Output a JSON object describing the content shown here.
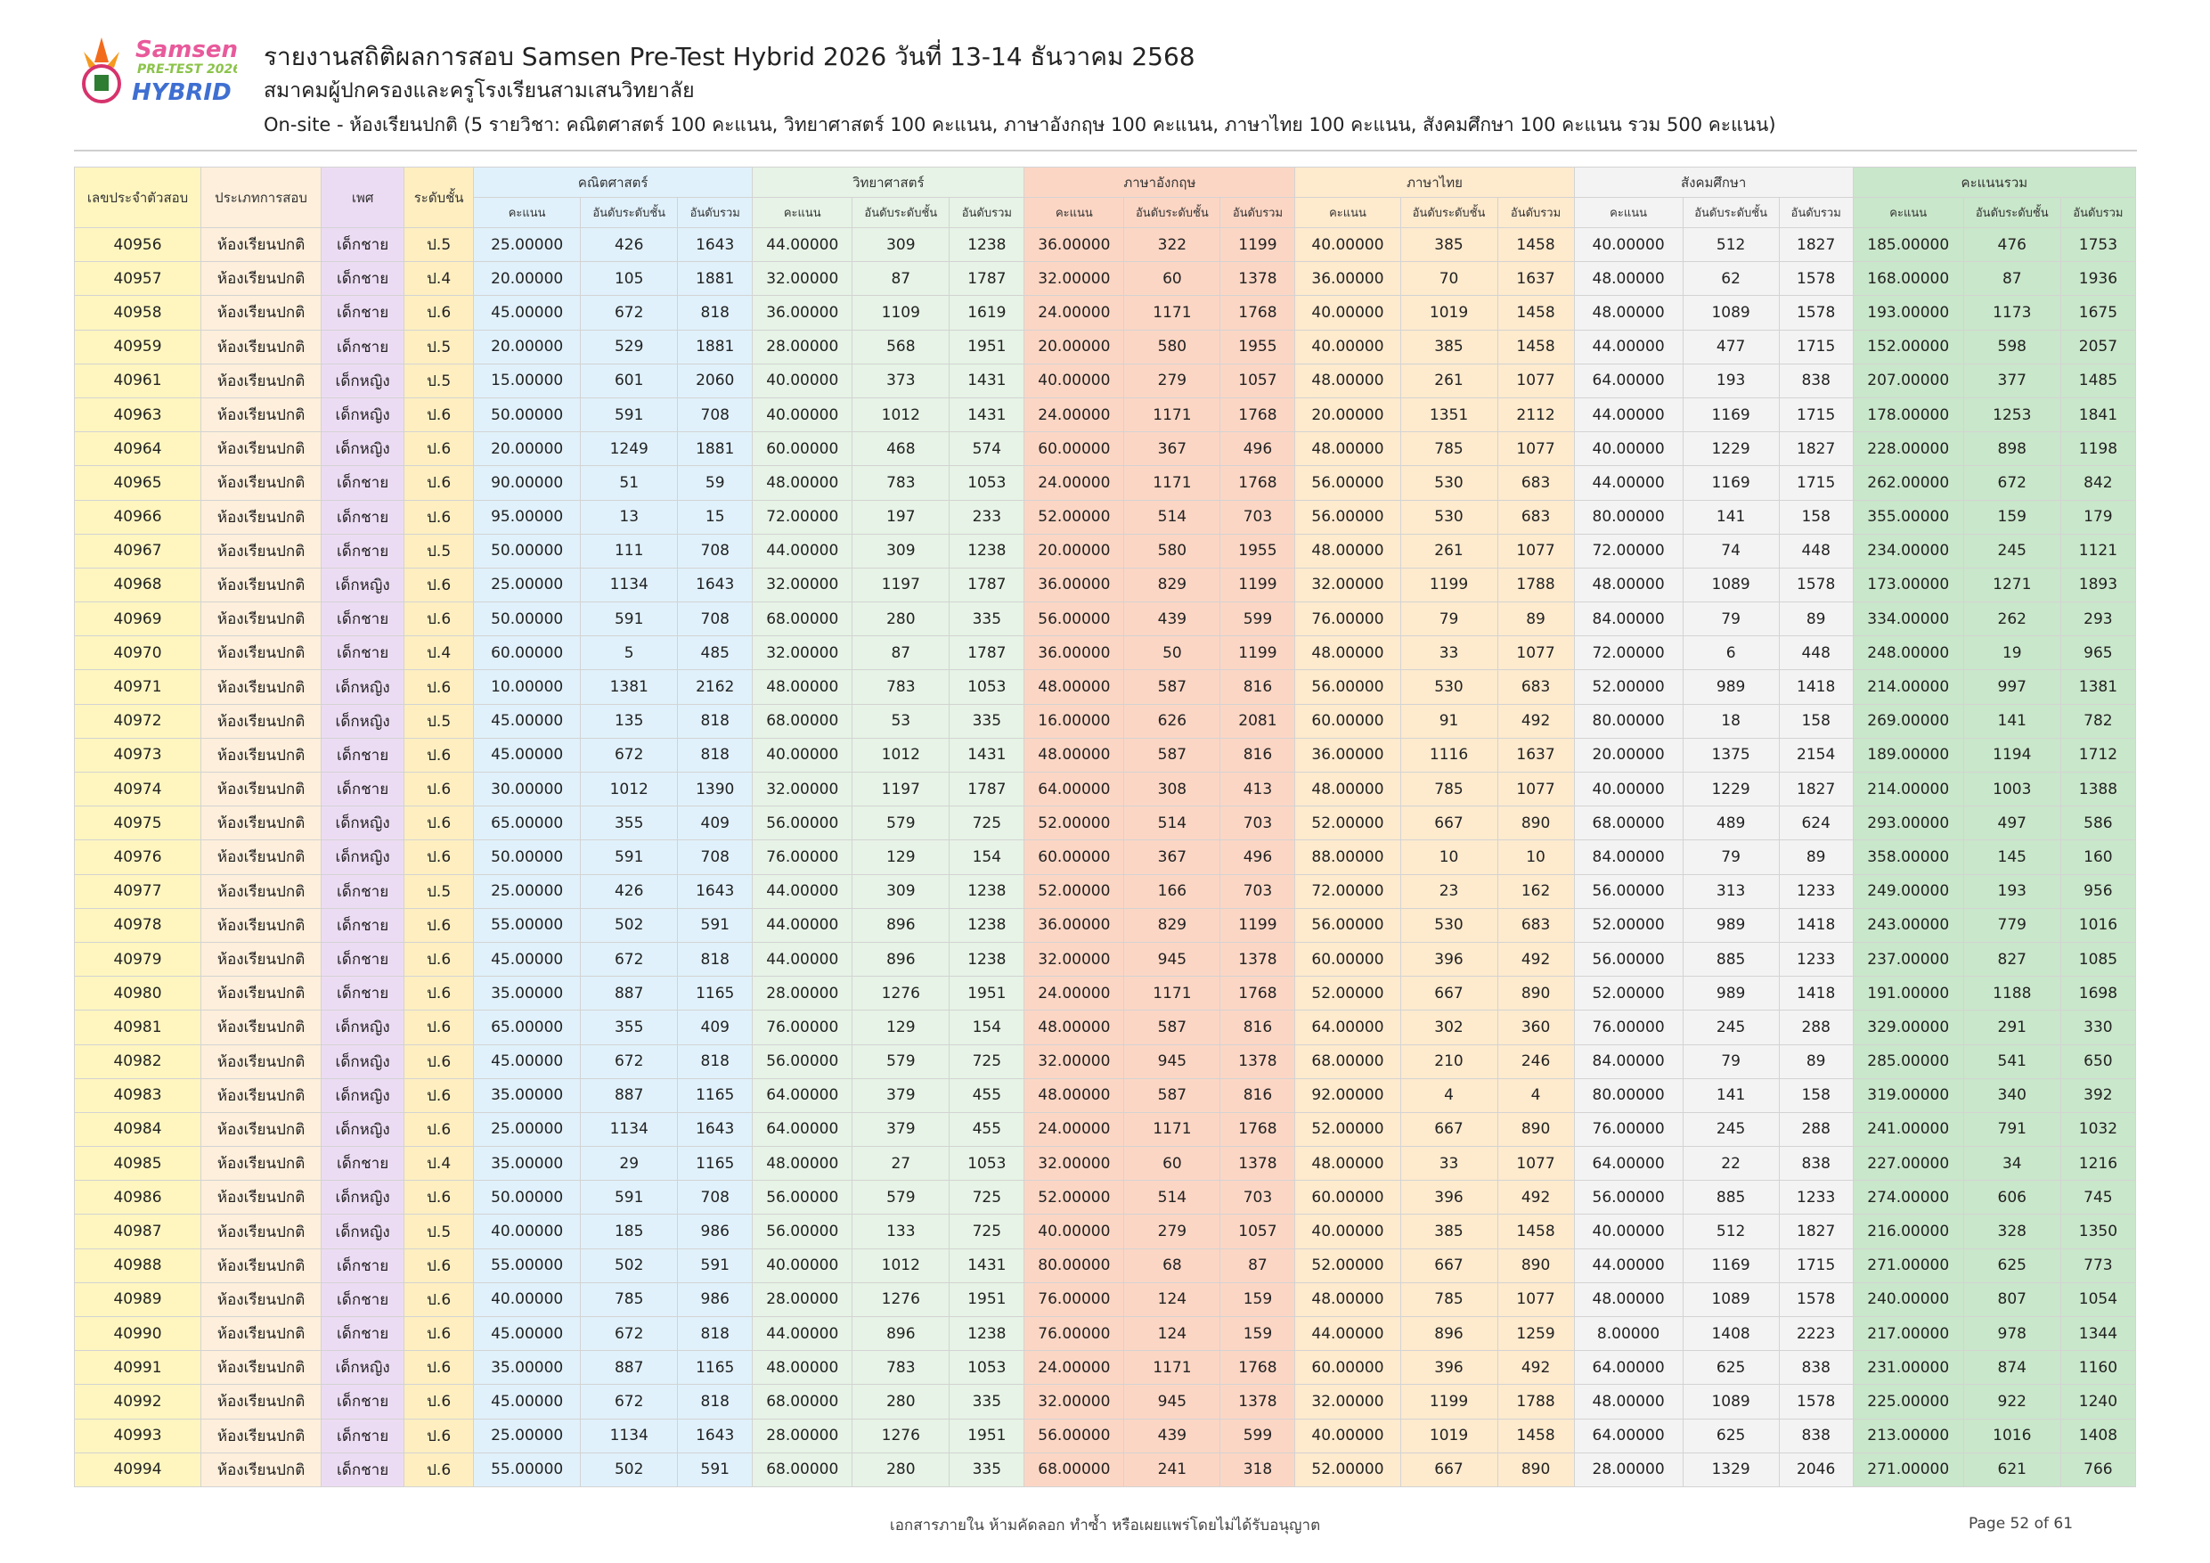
{
  "header": {
    "logo_text": "Samsen PRE-TEST 2026 HYBRID",
    "title": "รายงานสถิติผลการสอบ Samsen Pre-Test Hybrid 2026 วันที่ 13-14 ธันวาคม 2568",
    "subtitle": "สมาคมผู้ปกครองและครูโรงเรียนสามเสนวิทยาลัย",
    "description": "On-site - ห้องเรียนปกติ (5 รายวิชา: คณิตศาสตร์ 100 คะแนน, วิทยาศาสตร์ 100 คะแนน, ภาษาอังกฤษ 100 คะแนน, ภาษาไทย 100 คะแนน, สังคมศึกษา 100 คะแนน รวม 500 คะแนน)"
  },
  "table": {
    "fixed_headers": [
      "เลขประจำตัวสอบ",
      "ประเภทการสอบ",
      "เพศ",
      "ระดับชั้น"
    ],
    "groups": [
      "คณิตศาสตร์",
      "วิทยาศาสตร์",
      "ภาษาอังกฤษ",
      "ภาษาไทย",
      "สังคมศึกษา",
      "คะแนนรวม"
    ],
    "sub_headers": [
      "คะแนน",
      "อันดับระดับชั้น",
      "อันดับรวม"
    ],
    "group_colors": [
      "#e0f1fb",
      "#e6f3e6",
      "#fcd6c4",
      "#feeacd",
      "#f3f3f3",
      "#c9e7ca"
    ],
    "rows": [
      [
        "40956",
        "ห้องเรียนปกติ",
        "เด็กชาย",
        "ป.5",
        "25.00000",
        "426",
        "1643",
        "44.00000",
        "309",
        "1238",
        "36.00000",
        "322",
        "1199",
        "40.00000",
        "385",
        "1458",
        "40.00000",
        "512",
        "1827",
        "185.00000",
        "476",
        "1753"
      ],
      [
        "40957",
        "ห้องเรียนปกติ",
        "เด็กชาย",
        "ป.4",
        "20.00000",
        "105",
        "1881",
        "32.00000",
        "87",
        "1787",
        "32.00000",
        "60",
        "1378",
        "36.00000",
        "70",
        "1637",
        "48.00000",
        "62",
        "1578",
        "168.00000",
        "87",
        "1936"
      ],
      [
        "40958",
        "ห้องเรียนปกติ",
        "เด็กชาย",
        "ป.6",
        "45.00000",
        "672",
        "818",
        "36.00000",
        "1109",
        "1619",
        "24.00000",
        "1171",
        "1768",
        "40.00000",
        "1019",
        "1458",
        "48.00000",
        "1089",
        "1578",
        "193.00000",
        "1173",
        "1675"
      ],
      [
        "40959",
        "ห้องเรียนปกติ",
        "เด็กชาย",
        "ป.5",
        "20.00000",
        "529",
        "1881",
        "28.00000",
        "568",
        "1951",
        "20.00000",
        "580",
        "1955",
        "40.00000",
        "385",
        "1458",
        "44.00000",
        "477",
        "1715",
        "152.00000",
        "598",
        "2057"
      ],
      [
        "40961",
        "ห้องเรียนปกติ",
        "เด็กหญิง",
        "ป.5",
        "15.00000",
        "601",
        "2060",
        "40.00000",
        "373",
        "1431",
        "40.00000",
        "279",
        "1057",
        "48.00000",
        "261",
        "1077",
        "64.00000",
        "193",
        "838",
        "207.00000",
        "377",
        "1485"
      ],
      [
        "40963",
        "ห้องเรียนปกติ",
        "เด็กหญิง",
        "ป.6",
        "50.00000",
        "591",
        "708",
        "40.00000",
        "1012",
        "1431",
        "24.00000",
        "1171",
        "1768",
        "20.00000",
        "1351",
        "2112",
        "44.00000",
        "1169",
        "1715",
        "178.00000",
        "1253",
        "1841"
      ],
      [
        "40964",
        "ห้องเรียนปกติ",
        "เด็กหญิง",
        "ป.6",
        "20.00000",
        "1249",
        "1881",
        "60.00000",
        "468",
        "574",
        "60.00000",
        "367",
        "496",
        "48.00000",
        "785",
        "1077",
        "40.00000",
        "1229",
        "1827",
        "228.00000",
        "898",
        "1198"
      ],
      [
        "40965",
        "ห้องเรียนปกติ",
        "เด็กชาย",
        "ป.6",
        "90.00000",
        "51",
        "59",
        "48.00000",
        "783",
        "1053",
        "24.00000",
        "1171",
        "1768",
        "56.00000",
        "530",
        "683",
        "44.00000",
        "1169",
        "1715",
        "262.00000",
        "672",
        "842"
      ],
      [
        "40966",
        "ห้องเรียนปกติ",
        "เด็กชาย",
        "ป.6",
        "95.00000",
        "13",
        "15",
        "72.00000",
        "197",
        "233",
        "52.00000",
        "514",
        "703",
        "56.00000",
        "530",
        "683",
        "80.00000",
        "141",
        "158",
        "355.00000",
        "159",
        "179"
      ],
      [
        "40967",
        "ห้องเรียนปกติ",
        "เด็กชาย",
        "ป.5",
        "50.00000",
        "111",
        "708",
        "44.00000",
        "309",
        "1238",
        "20.00000",
        "580",
        "1955",
        "48.00000",
        "261",
        "1077",
        "72.00000",
        "74",
        "448",
        "234.00000",
        "245",
        "1121"
      ],
      [
        "40968",
        "ห้องเรียนปกติ",
        "เด็กหญิง",
        "ป.6",
        "25.00000",
        "1134",
        "1643",
        "32.00000",
        "1197",
        "1787",
        "36.00000",
        "829",
        "1199",
        "32.00000",
        "1199",
        "1788",
        "48.00000",
        "1089",
        "1578",
        "173.00000",
        "1271",
        "1893"
      ],
      [
        "40969",
        "ห้องเรียนปกติ",
        "เด็กชาย",
        "ป.6",
        "50.00000",
        "591",
        "708",
        "68.00000",
        "280",
        "335",
        "56.00000",
        "439",
        "599",
        "76.00000",
        "79",
        "89",
        "84.00000",
        "79",
        "89",
        "334.00000",
        "262",
        "293"
      ],
      [
        "40970",
        "ห้องเรียนปกติ",
        "เด็กชาย",
        "ป.4",
        "60.00000",
        "5",
        "485",
        "32.00000",
        "87",
        "1787",
        "36.00000",
        "50",
        "1199",
        "48.00000",
        "33",
        "1077",
        "72.00000",
        "6",
        "448",
        "248.00000",
        "19",
        "965"
      ],
      [
        "40971",
        "ห้องเรียนปกติ",
        "เด็กหญิง",
        "ป.6",
        "10.00000",
        "1381",
        "2162",
        "48.00000",
        "783",
        "1053",
        "48.00000",
        "587",
        "816",
        "56.00000",
        "530",
        "683",
        "52.00000",
        "989",
        "1418",
        "214.00000",
        "997",
        "1381"
      ],
      [
        "40972",
        "ห้องเรียนปกติ",
        "เด็กหญิง",
        "ป.5",
        "45.00000",
        "135",
        "818",
        "68.00000",
        "53",
        "335",
        "16.00000",
        "626",
        "2081",
        "60.00000",
        "91",
        "492",
        "80.00000",
        "18",
        "158",
        "269.00000",
        "141",
        "782"
      ],
      [
        "40973",
        "ห้องเรียนปกติ",
        "เด็กชาย",
        "ป.6",
        "45.00000",
        "672",
        "818",
        "40.00000",
        "1012",
        "1431",
        "48.00000",
        "587",
        "816",
        "36.00000",
        "1116",
        "1637",
        "20.00000",
        "1375",
        "2154",
        "189.00000",
        "1194",
        "1712"
      ],
      [
        "40974",
        "ห้องเรียนปกติ",
        "เด็กชาย",
        "ป.6",
        "30.00000",
        "1012",
        "1390",
        "32.00000",
        "1197",
        "1787",
        "64.00000",
        "308",
        "413",
        "48.00000",
        "785",
        "1077",
        "40.00000",
        "1229",
        "1827",
        "214.00000",
        "1003",
        "1388"
      ],
      [
        "40975",
        "ห้องเรียนปกติ",
        "เด็กหญิง",
        "ป.6",
        "65.00000",
        "355",
        "409",
        "56.00000",
        "579",
        "725",
        "52.00000",
        "514",
        "703",
        "52.00000",
        "667",
        "890",
        "68.00000",
        "489",
        "624",
        "293.00000",
        "497",
        "586"
      ],
      [
        "40976",
        "ห้องเรียนปกติ",
        "เด็กหญิง",
        "ป.6",
        "50.00000",
        "591",
        "708",
        "76.00000",
        "129",
        "154",
        "60.00000",
        "367",
        "496",
        "88.00000",
        "10",
        "10",
        "84.00000",
        "79",
        "89",
        "358.00000",
        "145",
        "160"
      ],
      [
        "40977",
        "ห้องเรียนปกติ",
        "เด็กชาย",
        "ป.5",
        "25.00000",
        "426",
        "1643",
        "44.00000",
        "309",
        "1238",
        "52.00000",
        "166",
        "703",
        "72.00000",
        "23",
        "162",
        "56.00000",
        "313",
        "1233",
        "249.00000",
        "193",
        "956"
      ],
      [
        "40978",
        "ห้องเรียนปกติ",
        "เด็กชาย",
        "ป.6",
        "55.00000",
        "502",
        "591",
        "44.00000",
        "896",
        "1238",
        "36.00000",
        "829",
        "1199",
        "56.00000",
        "530",
        "683",
        "52.00000",
        "989",
        "1418",
        "243.00000",
        "779",
        "1016"
      ],
      [
        "40979",
        "ห้องเรียนปกติ",
        "เด็กชาย",
        "ป.6",
        "45.00000",
        "672",
        "818",
        "44.00000",
        "896",
        "1238",
        "32.00000",
        "945",
        "1378",
        "60.00000",
        "396",
        "492",
        "56.00000",
        "885",
        "1233",
        "237.00000",
        "827",
        "1085"
      ],
      [
        "40980",
        "ห้องเรียนปกติ",
        "เด็กชาย",
        "ป.6",
        "35.00000",
        "887",
        "1165",
        "28.00000",
        "1276",
        "1951",
        "24.00000",
        "1171",
        "1768",
        "52.00000",
        "667",
        "890",
        "52.00000",
        "989",
        "1418",
        "191.00000",
        "1188",
        "1698"
      ],
      [
        "40981",
        "ห้องเรียนปกติ",
        "เด็กหญิง",
        "ป.6",
        "65.00000",
        "355",
        "409",
        "76.00000",
        "129",
        "154",
        "48.00000",
        "587",
        "816",
        "64.00000",
        "302",
        "360",
        "76.00000",
        "245",
        "288",
        "329.00000",
        "291",
        "330"
      ],
      [
        "40982",
        "ห้องเรียนปกติ",
        "เด็กหญิง",
        "ป.6",
        "45.00000",
        "672",
        "818",
        "56.00000",
        "579",
        "725",
        "32.00000",
        "945",
        "1378",
        "68.00000",
        "210",
        "246",
        "84.00000",
        "79",
        "89",
        "285.00000",
        "541",
        "650"
      ],
      [
        "40983",
        "ห้องเรียนปกติ",
        "เด็กหญิง",
        "ป.6",
        "35.00000",
        "887",
        "1165",
        "64.00000",
        "379",
        "455",
        "48.00000",
        "587",
        "816",
        "92.00000",
        "4",
        "4",
        "80.00000",
        "141",
        "158",
        "319.00000",
        "340",
        "392"
      ],
      [
        "40984",
        "ห้องเรียนปกติ",
        "เด็กหญิง",
        "ป.6",
        "25.00000",
        "1134",
        "1643",
        "64.00000",
        "379",
        "455",
        "24.00000",
        "1171",
        "1768",
        "52.00000",
        "667",
        "890",
        "76.00000",
        "245",
        "288",
        "241.00000",
        "791",
        "1032"
      ],
      [
        "40985",
        "ห้องเรียนปกติ",
        "เด็กชาย",
        "ป.4",
        "35.00000",
        "29",
        "1165",
        "48.00000",
        "27",
        "1053",
        "32.00000",
        "60",
        "1378",
        "48.00000",
        "33",
        "1077",
        "64.00000",
        "22",
        "838",
        "227.00000",
        "34",
        "1216"
      ],
      [
        "40986",
        "ห้องเรียนปกติ",
        "เด็กหญิง",
        "ป.6",
        "50.00000",
        "591",
        "708",
        "56.00000",
        "579",
        "725",
        "52.00000",
        "514",
        "703",
        "60.00000",
        "396",
        "492",
        "56.00000",
        "885",
        "1233",
        "274.00000",
        "606",
        "745"
      ],
      [
        "40987",
        "ห้องเรียนปกติ",
        "เด็กหญิง",
        "ป.5",
        "40.00000",
        "185",
        "986",
        "56.00000",
        "133",
        "725",
        "40.00000",
        "279",
        "1057",
        "40.00000",
        "385",
        "1458",
        "40.00000",
        "512",
        "1827",
        "216.00000",
        "328",
        "1350"
      ],
      [
        "40988",
        "ห้องเรียนปกติ",
        "เด็กชาย",
        "ป.6",
        "55.00000",
        "502",
        "591",
        "40.00000",
        "1012",
        "1431",
        "80.00000",
        "68",
        "87",
        "52.00000",
        "667",
        "890",
        "44.00000",
        "1169",
        "1715",
        "271.00000",
        "625",
        "773"
      ],
      [
        "40989",
        "ห้องเรียนปกติ",
        "เด็กชาย",
        "ป.6",
        "40.00000",
        "785",
        "986",
        "28.00000",
        "1276",
        "1951",
        "76.00000",
        "124",
        "159",
        "48.00000",
        "785",
        "1077",
        "48.00000",
        "1089",
        "1578",
        "240.00000",
        "807",
        "1054"
      ],
      [
        "40990",
        "ห้องเรียนปกติ",
        "เด็กชาย",
        "ป.6",
        "45.00000",
        "672",
        "818",
        "44.00000",
        "896",
        "1238",
        "76.00000",
        "124",
        "159",
        "44.00000",
        "896",
        "1259",
        "8.00000",
        "1408",
        "2223",
        "217.00000",
        "978",
        "1344"
      ],
      [
        "40991",
        "ห้องเรียนปกติ",
        "เด็กหญิง",
        "ป.6",
        "35.00000",
        "887",
        "1165",
        "48.00000",
        "783",
        "1053",
        "24.00000",
        "1171",
        "1768",
        "60.00000",
        "396",
        "492",
        "64.00000",
        "625",
        "838",
        "231.00000",
        "874",
        "1160"
      ],
      [
        "40992",
        "ห้องเรียนปกติ",
        "เด็กชาย",
        "ป.6",
        "45.00000",
        "672",
        "818",
        "68.00000",
        "280",
        "335",
        "32.00000",
        "945",
        "1378",
        "32.00000",
        "1199",
        "1788",
        "48.00000",
        "1089",
        "1578",
        "225.00000",
        "922",
        "1240"
      ],
      [
        "40993",
        "ห้องเรียนปกติ",
        "เด็กชาย",
        "ป.6",
        "25.00000",
        "1134",
        "1643",
        "28.00000",
        "1276",
        "1951",
        "56.00000",
        "439",
        "599",
        "40.00000",
        "1019",
        "1458",
        "64.00000",
        "625",
        "838",
        "213.00000",
        "1016",
        "1408"
      ],
      [
        "40994",
        "ห้องเรียนปกติ",
        "เด็กชาย",
        "ป.6",
        "55.00000",
        "502",
        "591",
        "68.00000",
        "280",
        "335",
        "68.00000",
        "241",
        "318",
        "52.00000",
        "667",
        "890",
        "28.00000",
        "1329",
        "2046",
        "271.00000",
        "621",
        "766"
      ]
    ]
  },
  "footer": {
    "notice": "เอกสารภายใน ห้ามคัดลอก ทำซ้ำ หรือเผยแพร่โดยไม่ได้รับอนุญาต",
    "page": "Page 52 of 61"
  }
}
